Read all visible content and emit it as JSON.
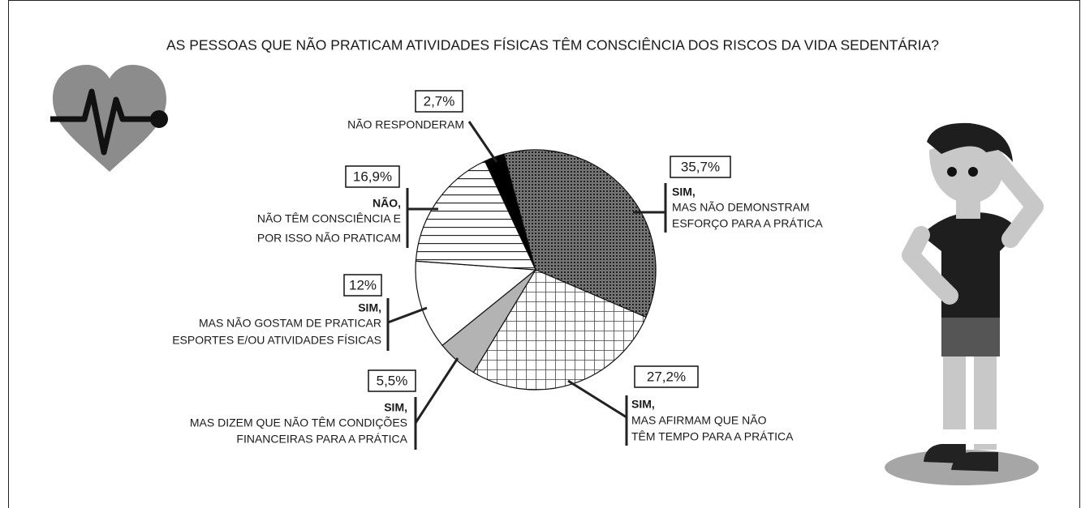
{
  "chart_data": {
    "type": "pie",
    "title": "AS PESSOAS QUE NÃO PRATICAM ATIVIDADES FÍSICAS TÊM CONSCIÊNCIA DOS RISCOS DA VIDA SEDENTÁRIA?",
    "categories": [
      [
        "NÃO RESPONDERAM"
      ],
      [
        "SIM,",
        "MAS NÃO DEMONSTRAM",
        "ESFORÇO PARA A PRÁTICA"
      ],
      [
        "SIM,",
        "MAS AFIRMAM QUE NÃO",
        "TÊM TEMPO PARA A PRÁTICA"
      ],
      [
        "SIM,",
        "MAS DIZEM QUE NÃO TÊM CONDIÇÕES",
        "FINANCEIRAS PARA A PRÁTICA"
      ],
      [
        "SIM,",
        "MAS NÃO GOSTAM DE PRATICAR",
        "ESPORTES E/OU ATIVIDADES FÍSICAS"
      ],
      [
        "NÃO,",
        "NÃO TÊM CONSCIÊNCIA E",
        "POR ISSO NÃO PRATICAM"
      ]
    ],
    "values": [
      2.7,
      35.7,
      27.2,
      5.5,
      12,
      16.9
    ],
    "value_labels": [
      "2,7%",
      "35,7%",
      "27,2%",
      "5,5%",
      "12%",
      "16,9%"
    ]
  }
}
